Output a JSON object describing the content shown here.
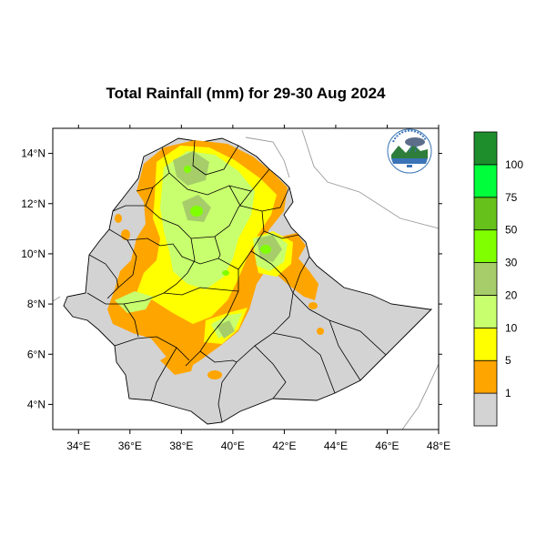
{
  "title": "Total Rainfall (mm) for 29-30 Aug 2024",
  "map": {
    "lon_range": [
      33,
      48
    ],
    "lat_range": [
      3,
      15
    ],
    "lon_ticks": [
      {
        "value": 34,
        "label": "34°E"
      },
      {
        "value": 36,
        "label": "36°E"
      },
      {
        "value": 38,
        "label": "38°E"
      },
      {
        "value": 40,
        "label": "40°E"
      },
      {
        "value": 42,
        "label": "42°E"
      },
      {
        "value": 44,
        "label": "44°E"
      },
      {
        "value": 46,
        "label": "46°E"
      },
      {
        "value": 48,
        "label": "48°E"
      }
    ],
    "lat_ticks": [
      {
        "value": 4,
        "label": "4°N"
      },
      {
        "value": 6,
        "label": "6°N"
      },
      {
        "value": 8,
        "label": "8°N"
      },
      {
        "value": 10,
        "label": "10°N"
      },
      {
        "value": 12,
        "label": "12°N"
      },
      {
        "value": 14,
        "label": "14°N"
      }
    ]
  },
  "legend": {
    "bins": [
      {
        "color": "#d3d3d3",
        "label": "1"
      },
      {
        "color": "#ffa500",
        "label": "5"
      },
      {
        "color": "#ffff00",
        "label": "10"
      },
      {
        "color": "#c8ff6e",
        "label": "20"
      },
      {
        "color": "#a6cd6a",
        "label": "30"
      },
      {
        "color": "#80ff00",
        "label": "50"
      },
      {
        "color": "#66c21b",
        "label": "75"
      },
      {
        "color": "#00ff3a",
        "label": "100"
      },
      {
        "color": "#1e8e2d",
        "label": ""
      }
    ]
  },
  "logo": {
    "icon": "ethiopian-meteorology-institute-logo"
  }
}
